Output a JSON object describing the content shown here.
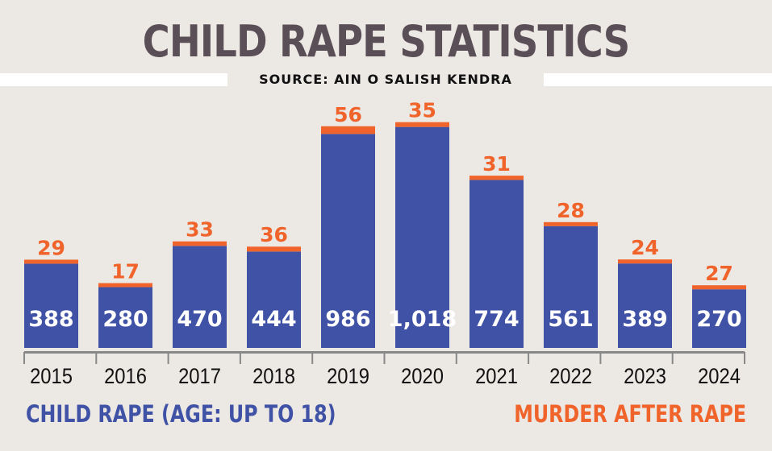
{
  "title": "CHILD RAPE STATISTICS",
  "subtitle": "SOURCE: AIN O SALISH KENDRA",
  "colors": {
    "rape": "#4052a6",
    "murder": "#f0632a",
    "background": "#ece8e4",
    "axis": "#888888"
  },
  "chart_data": {
    "type": "bar",
    "stacked": true,
    "categories": [
      "2015",
      "2016",
      "2017",
      "2018",
      "2019",
      "2020",
      "2021",
      "2022",
      "2023",
      "2024"
    ],
    "series": [
      {
        "name": "CHILD RAPE (AGE: UP TO 18)",
        "values": [
          388,
          280,
          470,
          444,
          986,
          1018,
          774,
          561,
          389,
          270
        ],
        "labels": [
          "388",
          "280",
          "470",
          "444",
          "986",
          "1,018",
          "774",
          "561",
          "389",
          "270"
        ]
      },
      {
        "name": "MURDER AFTER RAPE",
        "values": [
          29,
          17,
          33,
          36,
          56,
          35,
          31,
          28,
          24,
          27
        ],
        "labels": [
          "29",
          "17",
          "33",
          "36",
          "56",
          "35",
          "31",
          "28",
          "24",
          "27"
        ]
      }
    ],
    "ylim": [
      0,
      1060
    ],
    "grid": false,
    "legend_position": "bottom"
  }
}
